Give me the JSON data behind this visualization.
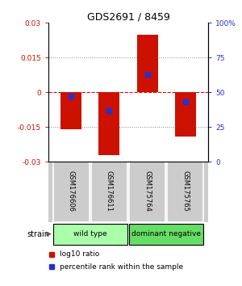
{
  "title": "GDS2691 / 8459",
  "samples": [
    "GSM176606",
    "GSM176611",
    "GSM175764",
    "GSM175765"
  ],
  "log10_ratios": [
    -0.016,
    -0.027,
    0.025,
    -0.019
  ],
  "percentile_ranks": [
    47,
    37,
    63,
    43
  ],
  "bar_color": "#cc1100",
  "marker_color": "#2233cc",
  "ylim_left": [
    -0.03,
    0.03
  ],
  "ylim_right": [
    0,
    100
  ],
  "yticks_left": [
    -0.03,
    -0.015,
    0,
    0.015,
    0.03
  ],
  "yticks_right": [
    0,
    25,
    50,
    75,
    100
  ],
  "ytick_labels_left": [
    "-0.03",
    "-0.015",
    "0",
    "0.015",
    "0.03"
  ],
  "ytick_labels_right": [
    "0",
    "25",
    "50",
    "75",
    "100%"
  ],
  "strain_groups": [
    {
      "label": "wild type",
      "samples": [
        0,
        1
      ],
      "color": "#aaffaa"
    },
    {
      "label": "dominant negative",
      "samples": [
        2,
        3
      ],
      "color": "#66dd66"
    }
  ],
  "label_cell_color": "#cccccc",
  "strain_label": "strain",
  "legend_ratio_label": "log10 ratio",
  "legend_pct_label": "percentile rank within the sample",
  "hline_color": "#cc1100",
  "grid_color": "#888888",
  "background_color": "#ffffff"
}
